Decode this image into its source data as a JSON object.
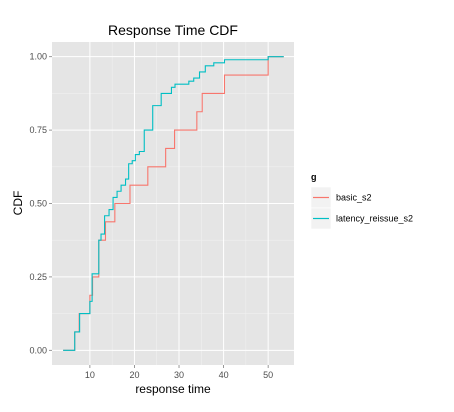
{
  "chart_data": {
    "type": "line",
    "step": true,
    "title": "Response Time CDF",
    "xlabel": "response time",
    "ylabel": "CDF",
    "xlim": [
      1.5,
      55.8
    ],
    "ylim": [
      -0.05,
      1.05
    ],
    "x_ticks": [
      10,
      20,
      30,
      40,
      50
    ],
    "y_ticks": [
      0.0,
      0.25,
      0.5,
      0.75,
      1.0
    ],
    "y_tick_labels": [
      "0.00",
      "0.25",
      "0.50",
      "0.75",
      "1.00"
    ],
    "grid": true,
    "legend": {
      "title": "g",
      "position": "right"
    },
    "series": [
      {
        "name": "basic_s2",
        "color": "#F8766D",
        "x": [
          4,
          6.6,
          7.6,
          10,
          10.6,
          12,
          13.5,
          15.6,
          19,
          23,
          27,
          29,
          34,
          35.2,
          40.2,
          50,
          53.5
        ],
        "y": [
          0.0,
          0.0625,
          0.125,
          0.1875,
          0.25,
          0.375,
          0.4375,
          0.5,
          0.5625,
          0.625,
          0.6875,
          0.75,
          0.8125,
          0.875,
          0.9375,
          1.0,
          1.0
        ]
      },
      {
        "name": "latency_reissue_s2",
        "color": "#00BFC4",
        "x": [
          4,
          6.6,
          7.7,
          10,
          10.5,
          12,
          12.5,
          13.3,
          14.3,
          15.2,
          16.1,
          17,
          18,
          18.7,
          19.5,
          20.2,
          21.1,
          22.2,
          24.1,
          26,
          28.3,
          29.1,
          32.2,
          33.3,
          34.6,
          35.9,
          37.8,
          40.2,
          50,
          53.5
        ],
        "y": [
          0.0,
          0.0625,
          0.125,
          0.1667,
          0.2604,
          0.375,
          0.3958,
          0.4583,
          0.4792,
          0.5208,
          0.5417,
          0.5625,
          0.5833,
          0.6354,
          0.6458,
          0.6667,
          0.6771,
          0.75,
          0.8333,
          0.875,
          0.8958,
          0.9063,
          0.9167,
          0.9271,
          0.9479,
          0.9688,
          0.9792,
          0.9896,
          1.0,
          1.0
        ]
      }
    ]
  }
}
